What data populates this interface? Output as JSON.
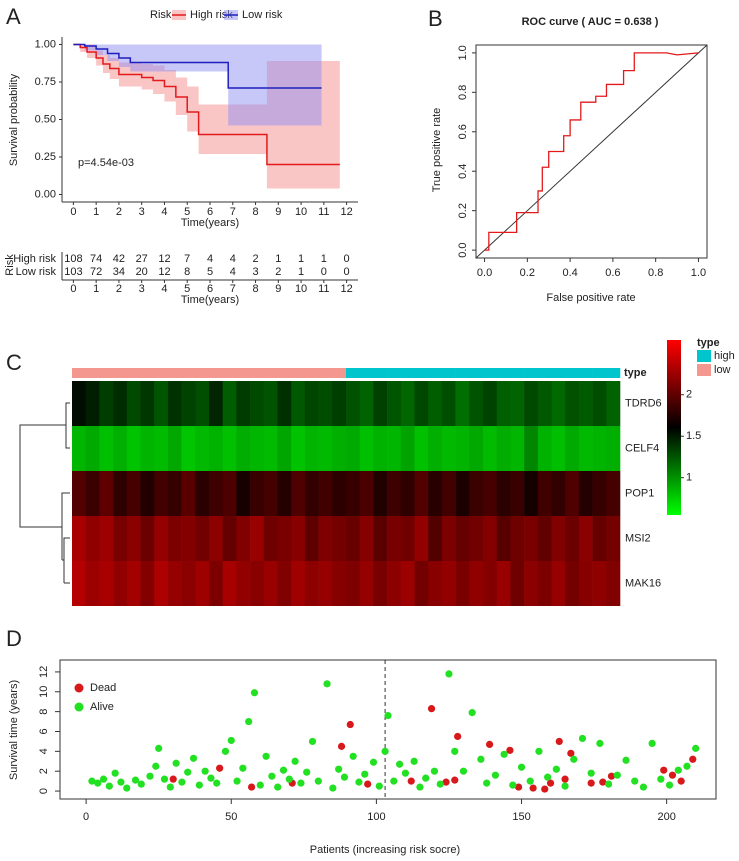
{
  "panel_labels": [
    "A",
    "B",
    "C",
    "D"
  ],
  "chart_data": [
    {
      "type": "step",
      "legend_title": "Risk",
      "ylabel": "Survival probability",
      "xlabel": "Time(years)",
      "annotation": "p=4.54e-03",
      "xlim": [
        -0.5,
        12.5
      ],
      "ylim": [
        -0.05,
        1.05
      ],
      "xticks": [
        0,
        1,
        2,
        3,
        4,
        5,
        6,
        7,
        8,
        9,
        10,
        11,
        12
      ],
      "yticks": [
        {
          "value": 0,
          "label": "0.00"
        },
        {
          "value": 0.25,
          "label": "0.25"
        },
        {
          "value": 0.5,
          "label": "0.50"
        },
        {
          "value": 0.75,
          "label": "0.75"
        },
        {
          "value": 1,
          "label": "1.00"
        }
      ],
      "series": [
        {
          "name": "High risk",
          "color": "#e31a1c",
          "band_color": "#f58c8c",
          "x": [
            0,
            0.3,
            0.6,
            1.0,
            1.3,
            1.6,
            2.0,
            2.5,
            3.0,
            3.5,
            4.0,
            4.5,
            5.0,
            5.5,
            6.8,
            7.6,
            8.5,
            11.7
          ],
          "y": [
            1.0,
            0.98,
            0.95,
            0.91,
            0.87,
            0.84,
            0.8,
            0.8,
            0.78,
            0.76,
            0.72,
            0.65,
            0.55,
            0.4,
            0.4,
            0.4,
            0.2,
            0.2
          ],
          "lower": [
            1.0,
            0.95,
            0.91,
            0.86,
            0.81,
            0.77,
            0.72,
            0.72,
            0.7,
            0.67,
            0.62,
            0.53,
            0.42,
            0.27,
            0.27,
            0.27,
            0.04,
            0.04
          ],
          "upper": [
            1.0,
            1.0,
            1.0,
            0.96,
            0.93,
            0.91,
            0.88,
            0.88,
            0.87,
            0.86,
            0.83,
            0.78,
            0.72,
            0.6,
            0.6,
            0.6,
            0.89,
            0.89
          ]
        },
        {
          "name": "Low risk",
          "color": "#1f1fbf",
          "band_color": "#8f8ff2",
          "x": [
            0,
            0.5,
            1.0,
            1.5,
            2.0,
            2.5,
            6.8,
            10.9
          ],
          "y": [
            1.0,
            0.99,
            0.97,
            0.94,
            0.91,
            0.88,
            0.71,
            0.71
          ],
          "lower": [
            1.0,
            0.96,
            0.93,
            0.89,
            0.85,
            0.82,
            0.46,
            0.46
          ],
          "upper": [
            1.0,
            1.0,
            1.0,
            1.0,
            1.0,
            1.0,
            1.0,
            1.0
          ]
        }
      ]
    },
    {
      "type": "table",
      "ylabel": "Risk",
      "xlabel": "Time(years)",
      "xlim": [
        -0.5,
        12.5
      ],
      "xticks": [
        0,
        1,
        2,
        3,
        4,
        5,
        6,
        7,
        8,
        9,
        10,
        11,
        12
      ],
      "x": [
        0,
        1,
        2,
        3,
        4,
        5,
        6,
        7,
        8,
        9,
        10,
        11,
        12
      ],
      "series": [
        {
          "name": "High risk",
          "color": "#e31a1c",
          "values": [
            108,
            74,
            42,
            27,
            12,
            7,
            4,
            4,
            2,
            1,
            1,
            1,
            0
          ]
        },
        {
          "name": "Low risk",
          "color": "#1f1fbf",
          "values": [
            103,
            72,
            34,
            20,
            12,
            8,
            5,
            4,
            3,
            2,
            1,
            0,
            0
          ]
        }
      ]
    },
    {
      "type": "line",
      "title": "ROC curve ( AUC =  0.638 )",
      "xlabel": "False positive rate",
      "ylabel": "True positive rate",
      "color": "#e31a1c",
      "xlim": [
        -0.04,
        1.04
      ],
      "ylim": [
        -0.04,
        1.04
      ],
      "xticks": [
        {
          "value": 0,
          "label": "0.0"
        },
        0.2,
        0.4,
        0.6,
        0.8,
        {
          "value": 1,
          "label": "1.0"
        }
      ],
      "yticks": [
        {
          "value": 0,
          "label": "0.0"
        },
        0.2,
        0.4,
        0.6,
        0.8,
        {
          "value": 1,
          "label": "1.0"
        }
      ],
      "x": [
        0,
        0.02,
        0.02,
        0.15,
        0.15,
        0.25,
        0.25,
        0.27,
        0.27,
        0.3,
        0.3,
        0.37,
        0.37,
        0.4,
        0.4,
        0.45,
        0.45,
        0.52,
        0.52,
        0.57,
        0.57,
        0.65,
        0.65,
        0.7,
        0.7,
        0.85,
        0.9,
        1.0
      ],
      "y": [
        0,
        0,
        0.09,
        0.09,
        0.19,
        0.19,
        0.3,
        0.3,
        0.42,
        0.42,
        0.5,
        0.5,
        0.58,
        0.58,
        0.66,
        0.66,
        0.75,
        0.75,
        0.78,
        0.78,
        0.84,
        0.84,
        0.91,
        0.91,
        1.0,
        1.0,
        0.99,
        1.0
      ]
    },
    {
      "type": "heatmap",
      "annotation_label": "type",
      "legend_title": "type",
      "rows": [
        "TDRD6",
        "CELF4",
        "POP1",
        "MSI2",
        "MAK16"
      ],
      "type_legend": [
        {
          "name": "high",
          "color": "#00c5cd"
        },
        {
          "name": "low",
          "color": "#f4978e"
        }
      ],
      "column_types": [
        "low",
        "low",
        "low",
        "low",
        "low",
        "low",
        "low",
        "low",
        "low",
        "low",
        "low",
        "low",
        "low",
        "low",
        "low",
        "low",
        "low",
        "low",
        "low",
        "low",
        "high",
        "high",
        "high",
        "high",
        "high",
        "high",
        "high",
        "high",
        "high",
        "high",
        "high",
        "high",
        "high",
        "high",
        "high",
        "high",
        "high",
        "high",
        "high",
        "high"
      ],
      "colors": [
        "#00ff00",
        "#000000",
        "#ff0000"
      ],
      "colorbar_lim": [
        0.55,
        2.66
      ],
      "colorbar_ticks": [
        1,
        1.5,
        2
      ],
      "values": [
        [
          1.55,
          1.48,
          1.35,
          1.42,
          1.3,
          1.38,
          1.25,
          1.4,
          1.33,
          1.28,
          1.45,
          1.22,
          1.36,
          1.3,
          1.26,
          1.41,
          1.24,
          1.32,
          1.29,
          1.35,
          1.27,
          1.2,
          1.34,
          1.25,
          1.18,
          1.31,
          1.22,
          1.28,
          1.15,
          1.26,
          1.33,
          1.21,
          1.19,
          1.3,
          1.24,
          1.17,
          1.27,
          1.23,
          1.29,
          1.2
        ],
        [
          0.85,
          0.9,
          0.82,
          0.88,
          0.8,
          0.86,
          0.83,
          0.91,
          0.79,
          0.84,
          0.87,
          0.81,
          0.89,
          0.85,
          0.83,
          0.92,
          0.8,
          0.86,
          0.84,
          0.88,
          0.9,
          0.82,
          0.87,
          0.85,
          0.93,
          0.81,
          0.88,
          0.84,
          0.86,
          0.91,
          0.83,
          0.89,
          0.85,
          1.05,
          0.87,
          0.82,
          0.9,
          0.84,
          0.86,
          0.88
        ],
        [
          1.95,
          1.85,
          2.0,
          1.8,
          1.9,
          1.75,
          1.88,
          1.82,
          1.97,
          1.78,
          1.86,
          1.92,
          1.7,
          1.84,
          1.89,
          1.76,
          1.93,
          1.81,
          1.87,
          1.79,
          1.83,
          1.91,
          1.74,
          1.86,
          1.8,
          1.95,
          1.77,
          1.88,
          1.72,
          1.85,
          1.9,
          1.78,
          1.84,
          1.69,
          1.87,
          1.81,
          1.93,
          1.76,
          1.83,
          1.89
        ],
        [
          2.3,
          2.2,
          2.25,
          2.1,
          2.18,
          2.05,
          2.22,
          2.12,
          2.15,
          2.08,
          2.19,
          2.02,
          2.14,
          2.24,
          2.06,
          2.11,
          2.17,
          2.0,
          2.13,
          2.09,
          2.04,
          2.16,
          1.98,
          2.1,
          2.07,
          2.21,
          1.95,
          2.12,
          2.03,
          2.08,
          2.15,
          1.97,
          2.06,
          2.11,
          2.01,
          2.14,
          2.05,
          2.18,
          2.02,
          2.09
        ],
        [
          2.35,
          2.25,
          2.3,
          2.2,
          2.28,
          2.15,
          2.32,
          2.22,
          2.18,
          2.26,
          2.12,
          2.29,
          2.21,
          2.17,
          2.24,
          2.14,
          2.27,
          2.19,
          2.23,
          2.16,
          2.13,
          2.22,
          2.1,
          2.19,
          2.25,
          2.08,
          2.17,
          2.21,
          2.11,
          2.2,
          2.15,
          2.24,
          2.06,
          2.18,
          2.12,
          2.23,
          2.09,
          2.16,
          2.2,
          2.14
        ]
      ]
    },
    {
      "type": "scatter",
      "xlabel": "Patients (increasing risk socre)",
      "ylabel": "Survival time (years)",
      "xlim": [
        -9,
        217
      ],
      "ylim": [
        -0.8,
        13.2
      ],
      "xticks": [
        0,
        50,
        100,
        150,
        200
      ],
      "yticks": [
        0,
        2,
        4,
        6,
        8,
        10,
        12
      ],
      "cutoff": 103,
      "series": [
        {
          "name": "Dead",
          "color": "#d7191c",
          "x": [
            30,
            46,
            57,
            71,
            88,
            91,
            97,
            112,
            119,
            124,
            127,
            128,
            139,
            146,
            149,
            154,
            158,
            160,
            163,
            165,
            167,
            174,
            178,
            181,
            199,
            202,
            205,
            209
          ],
          "y": [
            1.2,
            2.3,
            0.4,
            0.8,
            4.5,
            6.7,
            0.7,
            1.0,
            8.3,
            0.9,
            1.1,
            5.5,
            4.7,
            4.1,
            0.4,
            0.3,
            0.2,
            0.8,
            5.0,
            1.2,
            3.8,
            0.8,
            0.9,
            1.5,
            2.1,
            1.6,
            1.0,
            3.2
          ]
        },
        {
          "name": "Alive",
          "color": "#22e022",
          "x": [
            2,
            4,
            6,
            8,
            10,
            12,
            14,
            17,
            19,
            22,
            24,
            25,
            27,
            29,
            31,
            33,
            35,
            37,
            39,
            41,
            43,
            45,
            48,
            50,
            52,
            54,
            56,
            58,
            60,
            62,
            64,
            66,
            68,
            70,
            72,
            74,
            76,
            78,
            80,
            83,
            85,
            87,
            89,
            92,
            94,
            96,
            99,
            101,
            103,
            104,
            106,
            108,
            110,
            113,
            115,
            117,
            120,
            122,
            125,
            127,
            130,
            133,
            136,
            138,
            141,
            144,
            147,
            150,
            153,
            156,
            159,
            162,
            165,
            168,
            171,
            174,
            177,
            180,
            183,
            186,
            189,
            192,
            195,
            198,
            201,
            204,
            207,
            210
          ],
          "y": [
            1.0,
            0.8,
            1.2,
            0.5,
            1.8,
            0.9,
            0.3,
            1.1,
            0.7,
            1.5,
            2.5,
            4.3,
            1.2,
            0.4,
            2.8,
            0.9,
            1.9,
            3.3,
            0.6,
            2.0,
            1.3,
            0.8,
            4.0,
            5.1,
            1.0,
            2.3,
            7.0,
            9.9,
            0.6,
            3.5,
            1.5,
            0.4,
            2.1,
            1.2,
            3.0,
            0.8,
            1.9,
            5.0,
            1.0,
            10.8,
            0.3,
            2.2,
            1.4,
            3.5,
            0.9,
            1.7,
            2.9,
            0.5,
            4.0,
            7.6,
            1.0,
            2.7,
            1.8,
            3.0,
            0.4,
            1.3,
            2.0,
            0.7,
            11.8,
            4.0,
            2.0,
            7.9,
            3.2,
            0.8,
            1.6,
            3.7,
            0.6,
            2.4,
            1.0,
            4.0,
            1.4,
            2.2,
            0.5,
            3.2,
            5.3,
            1.8,
            4.8,
            0.7,
            1.6,
            3.1,
            1.0,
            0.4,
            4.8,
            1.2,
            0.6,
            2.1,
            2.5,
            4.3
          ]
        }
      ]
    }
  ]
}
